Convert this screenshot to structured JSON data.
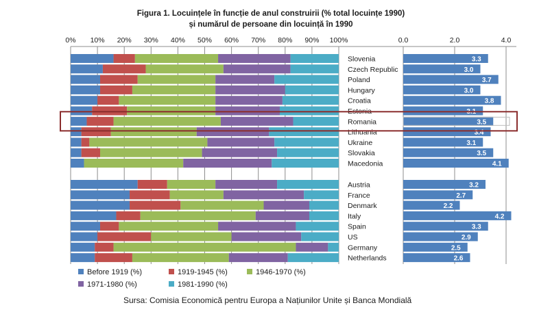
{
  "title_line1": "Figura 1. Locuințele în funcție de anul construirii (% total locuințe 1990)",
  "title_line2": "și numărul de persoane din locuință în 1990",
  "source": "Sursa: Comisia Economică pentru Europa a Națiunilor Unite și Banca Mondială",
  "colors": {
    "before_1919": "#4f81bd",
    "y1919_1945": "#c0504d",
    "y1946_1970": "#9bbb59",
    "y1971_1980": "#8064a2",
    "y1981_1990": "#4bacc6",
    "persons_bar": "#4f81bd",
    "highlight_box": "#8b2d2d"
  },
  "chart_data": [
    {
      "type": "bar",
      "orientation": "horizontal",
      "stacked": true,
      "percent_axis_labels": [
        "0%",
        "10%",
        "20%",
        "30%",
        "40%",
        "50%",
        "60%",
        "70%",
        "80%",
        "90%",
        "100%"
      ],
      "xlim": [
        0,
        100
      ],
      "grid": true,
      "legend_position": "bottom",
      "categories": [
        "Slovenia",
        "Czech Republic",
        "Poland",
        "Hungary",
        "Croatia",
        "Estonia",
        "Romania",
        "Lithuania",
        "Ukraine",
        "Slovakia",
        "Macedonia",
        "Austria",
        "France",
        "Denmark",
        "Italy",
        "Spain",
        "US",
        "Germany",
        "Netherlands"
      ],
      "group_sizes": [
        11,
        8
      ],
      "highlighted_category": "Romania",
      "series": [
        {
          "name": "Before 1919 (%)",
          "color_key": "before_1919",
          "values": [
            16,
            12,
            11,
            11,
            10,
            8,
            6,
            4,
            4,
            4,
            5,
            25,
            22,
            22,
            17,
            11,
            10,
            9,
            9
          ]
        },
        {
          "name": "1919-1945 (%)",
          "color_key": "y1919_1945",
          "values": [
            8,
            16,
            14,
            12,
            8,
            13,
            10,
            11,
            3,
            7,
            0,
            11,
            15,
            19,
            9,
            7,
            20,
            7,
            14
          ]
        },
        {
          "name": "1946-1970 (%)",
          "color_key": "y1946_1970",
          "values": [
            31,
            29,
            29,
            31,
            36,
            33,
            40,
            32,
            44,
            38,
            37,
            18,
            20,
            31,
            43,
            37,
            30,
            68,
            36
          ]
        },
        {
          "name": "1971-1980 (%)",
          "color_key": "y1971_1980",
          "values": [
            27,
            25,
            22,
            26,
            25,
            24,
            27,
            27,
            25,
            28,
            33,
            23,
            30,
            17,
            20,
            29,
            26,
            12,
            22
          ]
        },
        {
          "name": "1981-1990 (%)",
          "color_key": "y1981_1990",
          "values": [
            18,
            18,
            24,
            20,
            21,
            22,
            17,
            26,
            24,
            23,
            25,
            23,
            13,
            11,
            11,
            16,
            14,
            4,
            19
          ]
        }
      ]
    },
    {
      "type": "bar",
      "orientation": "horizontal",
      "axis_labels": [
        "0.0",
        "2.0",
        "4.0"
      ],
      "xlim": [
        0,
        4.4
      ],
      "grid": true,
      "categories": [
        "Slovenia",
        "Czech Republic",
        "Poland",
        "Hungary",
        "Croatia",
        "Estonia",
        "Romania",
        "Lithuania",
        "Ukraine",
        "Slovakia",
        "Macedonia",
        "Austria",
        "France",
        "Denmark",
        "Italy",
        "Spain",
        "US",
        "Germany",
        "Netherlands"
      ],
      "values": [
        3.3,
        3.0,
        3.7,
        3.0,
        3.8,
        3.1,
        3.5,
        3.4,
        3.1,
        3.5,
        4.1,
        3.2,
        2.7,
        2.2,
        4.2,
        3.3,
        2.9,
        2.5,
        2.6
      ],
      "value_labels": [
        "3.3",
        "3.0",
        "3.7",
        "3.0",
        "3.8",
        "3.1",
        "3.5",
        "3.4",
        "3.1",
        "3.5",
        "4.1",
        "3.2",
        "2.7",
        "2.2",
        "4.2",
        "3.3",
        "2.9",
        "2.5",
        "2.6"
      ]
    }
  ]
}
